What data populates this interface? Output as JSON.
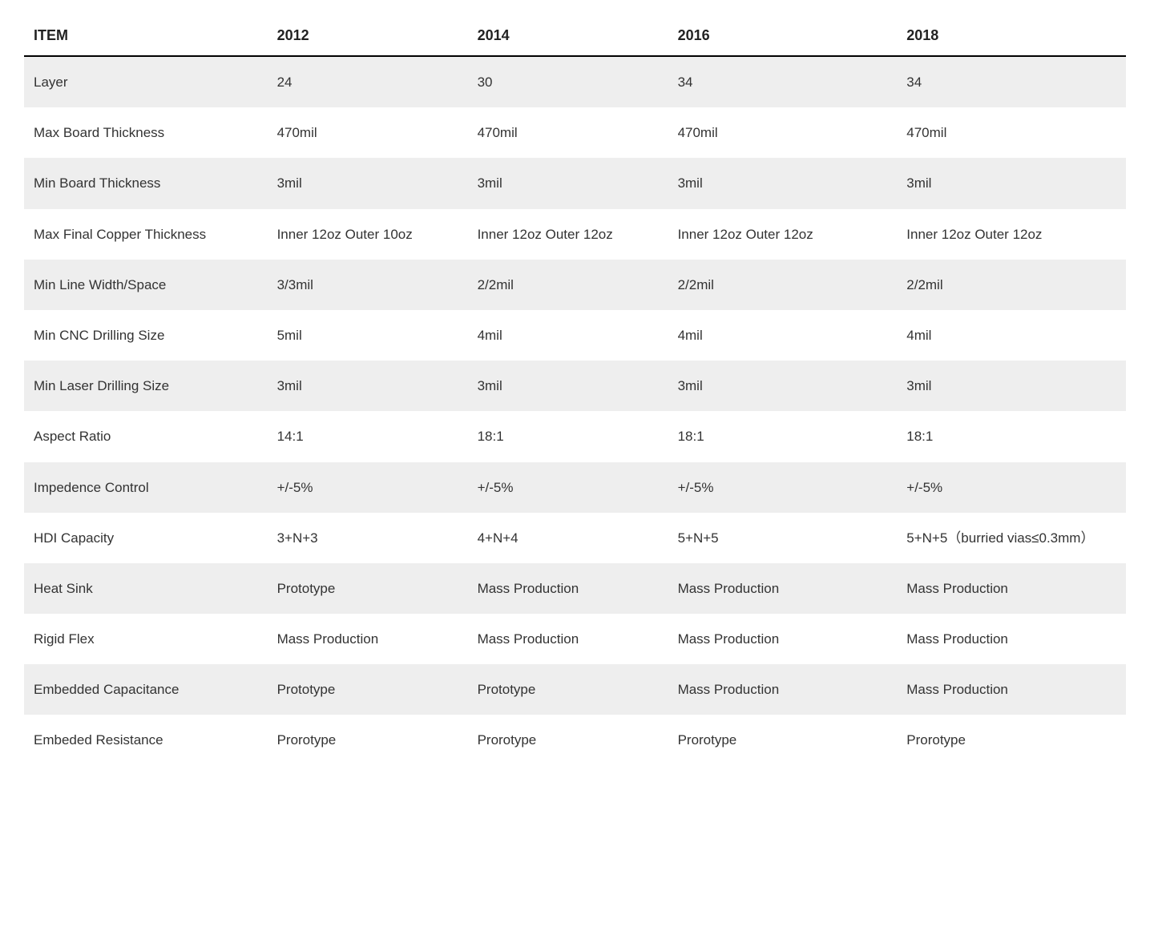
{
  "table": {
    "type": "table",
    "background_color": "#ffffff",
    "stripe_color": "#eeeeee",
    "text_color": "#333333",
    "header_text_color": "#222222",
    "header_border_color": "#000000",
    "header_fontsize": 18,
    "header_fontweight": 700,
    "cell_fontsize": 17,
    "cell_fontweight": 400,
    "line_height": 1.6,
    "columns": [
      "ITEM",
      "2012",
      "2014",
      "2016",
      "2018"
    ],
    "column_widths_pct": [
      17,
      14,
      14,
      16,
      16
    ],
    "rows": [
      [
        "Layer",
        "24",
        "30",
        "34",
        "34"
      ],
      [
        "Max Board Thickness",
        "470mil",
        "470mil",
        "470mil",
        "470mil"
      ],
      [
        "Min Board Thickness",
        "3mil",
        "3mil",
        "3mil",
        "3mil"
      ],
      [
        "Max Final Copper Thickness",
        "Inner 12oz Outer 10oz",
        "Inner 12oz Outer 12oz",
        "Inner 12oz Outer 12oz",
        "Inner 12oz Outer 12oz"
      ],
      [
        "Min Line Width/Space",
        "3/3mil",
        "2/2mil",
        "2/2mil",
        "2/2mil"
      ],
      [
        "Min CNC Drilling Size",
        "5mil",
        "4mil",
        "4mil",
        "4mil"
      ],
      [
        "Min Laser Drilling Size",
        "3mil",
        "3mil",
        "3mil",
        "3mil"
      ],
      [
        "Aspect Ratio",
        "14:1",
        "18:1",
        "18:1",
        "18:1"
      ],
      [
        "Impedence Control",
        "+/-5%",
        "+/-5%",
        "+/-5%",
        "+/-5%"
      ],
      [
        "HDI Capacity",
        "3+N+3",
        "4+N+4",
        "5+N+5",
        "5+N+5（burried vias≤0.3mm）"
      ],
      [
        "Heat Sink",
        "Prototype",
        "Mass Production",
        "Mass Production",
        "Mass Production"
      ],
      [
        "Rigid Flex",
        "Mass Production",
        "Mass Production",
        "Mass Production",
        "Mass Production"
      ],
      [
        "Embedded Capacitance",
        "Prototype",
        "Prototype",
        "Mass Production",
        "Mass Production"
      ],
      [
        "Embeded Resistance",
        "Prorotype",
        "Prorotype",
        "Prorotype",
        "Prorotype"
      ]
    ]
  }
}
